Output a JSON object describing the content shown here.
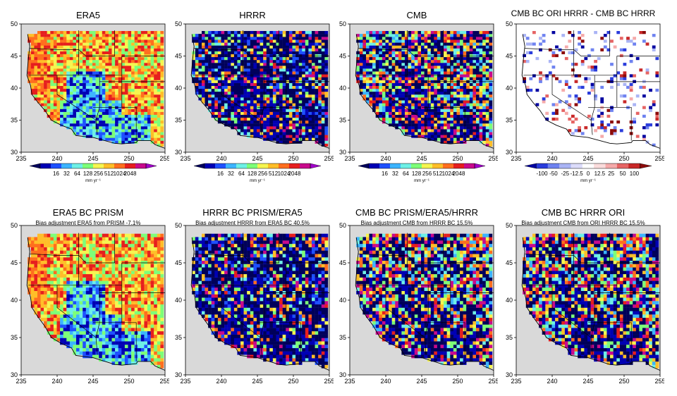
{
  "axes": {
    "x_ticks": [
      "235",
      "240",
      "245",
      "250",
      "255"
    ],
    "y_ticks": [
      "30",
      "35",
      "40",
      "45",
      "50"
    ]
  },
  "colorbars": {
    "rate": {
      "labels": [
        "16",
        "32",
        "64",
        "128",
        "256",
        "512",
        "1024",
        "2048"
      ],
      "unit": "mm yr⁻¹",
      "colors": [
        "#00005a",
        "#0000b4",
        "#1e50ff",
        "#3cb4ff",
        "#6ef0e6",
        "#7dff78",
        "#f5f550",
        "#ffbe28",
        "#ff6e1e",
        "#e61e1e",
        "#c80a8c",
        "#a000c8"
      ]
    },
    "diff": {
      "labels": [
        "-100",
        "-50",
        "-25",
        "-12.5",
        "0",
        "12.5",
        "25",
        "50",
        "100"
      ],
      "unit": "mm yr⁻¹",
      "colors": [
        "#0000a0",
        "#2a3cdc",
        "#6e82f0",
        "#aab4f5",
        "#dcdcfa",
        "#ffffff",
        "#fadcdc",
        "#f5aaaa",
        "#e66464",
        "#c82828",
        "#8c0a0a"
      ]
    }
  },
  "panels": [
    {
      "title": "ERA5",
      "subtitle": "",
      "scheme": "era5",
      "colorbar": "rate"
    },
    {
      "title": "HRRR",
      "subtitle": "",
      "scheme": "hrrr",
      "colorbar": "rate"
    },
    {
      "title": "CMB",
      "subtitle": "",
      "scheme": "cmb",
      "colorbar": "rate"
    },
    {
      "title": "CMB BC ORI HRRR - CMB BC HRRR",
      "subtitle": "",
      "scheme": "diff",
      "colorbar": "diff"
    },
    {
      "title": "ERA5 BC PRISM",
      "subtitle": "Bias adjustment ERA5 from PRISM -7.1%",
      "scheme": "era5",
      "colorbar": ""
    },
    {
      "title": "HRRR BC PRISM/ERA5",
      "subtitle": "Bias adjustment HRRR from ERA5 BC 40.5%",
      "scheme": "hrrr",
      "colorbar": ""
    },
    {
      "title": "CMB BC PRISM/ERA5/HRRR",
      "subtitle": "Bias adjustment CMB from HRRR BC 15.5%",
      "scheme": "cmb",
      "colorbar": ""
    },
    {
      "title": "CMB BC HRRR ORI",
      "subtitle": "Bias adjustment CMB from ORI HRRR BC 15.5%",
      "scheme": "cmb",
      "colorbar": ""
    }
  ]
}
